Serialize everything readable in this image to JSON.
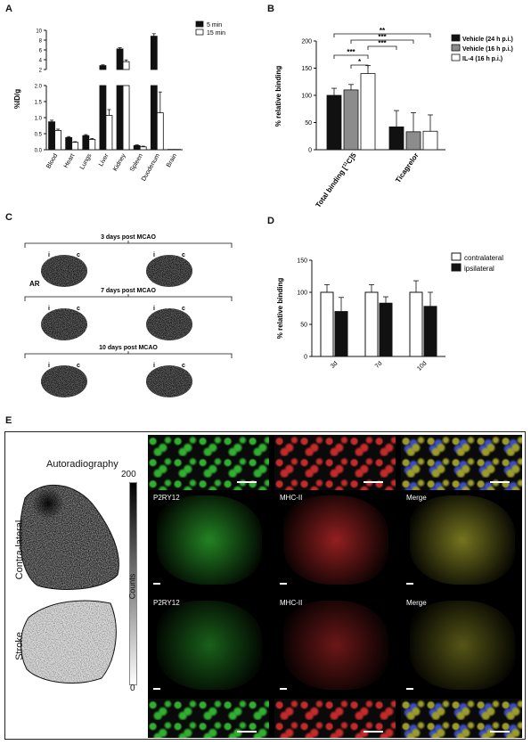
{
  "panels": {
    "A": "A",
    "B": "B",
    "C": "C",
    "D": "D",
    "E": "E"
  },
  "colors": {
    "black": "#111111",
    "gray": "#8c8c8c",
    "white": "#ffffff"
  },
  "chart_data": [
    {
      "id": "A",
      "type": "bar",
      "ylabel": "%ID/g",
      "categories": [
        "Blood",
        "Heart",
        "Lungs",
        "Liver",
        "Kidney",
        "Spleen",
        "Duodenum",
        "Brain"
      ],
      "series": [
        {
          "name": "5 min",
          "values": [
            0.87,
            0.38,
            0.44,
            2.8,
            6.2,
            0.13,
            8.8,
            0.01
          ],
          "errors": [
            0.05,
            0.03,
            0.03,
            0.15,
            0.25,
            0.02,
            0.5,
            0.0
          ]
        },
        {
          "name": "15 min",
          "values": [
            0.6,
            0.23,
            0.32,
            1.07,
            3.6,
            0.09,
            1.15,
            0.01
          ],
          "errors": [
            0.04,
            0.02,
            0.03,
            0.18,
            0.35,
            0.02,
            0.65,
            0.0
          ]
        }
      ],
      "y_ticks_lower": [
        "0.0",
        "0.5",
        "1.0",
        "1.5",
        "2.0"
      ],
      "y_ticks_upper": [
        "2",
        "4",
        "6",
        "8",
        "10"
      ],
      "ylim_lower": [
        0,
        2
      ],
      "ylim_upper": [
        2,
        10
      ]
    },
    {
      "id": "B",
      "type": "bar",
      "ylabel": "% relative binding",
      "categories": [
        "Total binding [11C]5",
        "Ticagrelor"
      ],
      "series": [
        {
          "name": "Vehicle (24 h p.i.)",
          "values": [
            100,
            42
          ],
          "errors": [
            13,
            30
          ]
        },
        {
          "name": "Vehicle (16 h p.i.)",
          "values": [
            110,
            33
          ],
          "errors": [
            10,
            35
          ]
        },
        {
          "name": "IL-4 (16 h p.i.)",
          "values": [
            140,
            34
          ],
          "errors": [
            15,
            30
          ]
        }
      ],
      "y_ticks": [
        "0",
        "50",
        "100",
        "150",
        "200"
      ],
      "ylim": [
        0,
        200
      ],
      "sig": [
        "**",
        "***",
        "***",
        "***",
        "*"
      ]
    },
    {
      "id": "D",
      "type": "bar",
      "ylabel": "% relative binding",
      "categories": [
        "3d",
        "7d",
        "10d"
      ],
      "series": [
        {
          "name": "contralateral",
          "values": [
            100,
            100,
            100
          ],
          "errors": [
            12,
            12,
            18
          ]
        },
        {
          "name": "ipsilateral",
          "values": [
            70,
            83,
            78
          ],
          "errors": [
            22,
            10,
            22
          ]
        }
      ],
      "y_ticks": [
        "0",
        "50",
        "100",
        "150"
      ],
      "ylim": [
        0,
        150
      ]
    }
  ],
  "panelC": {
    "ar": "AR",
    "rows": [
      "3 days post MCAO",
      "7 days post MCAO",
      "10 days post MCAO"
    ],
    "i": "i",
    "c": "c"
  },
  "panelE": {
    "title": "Autoradiography",
    "row1": "Contra-lateral",
    "row2": "Stroke",
    "cbar_max": "200",
    "cbar_min": "0",
    "cbar_label": "Counts",
    "p2ry12": "P2RY12",
    "mhc": "MHC-II",
    "merge": "Merge"
  }
}
